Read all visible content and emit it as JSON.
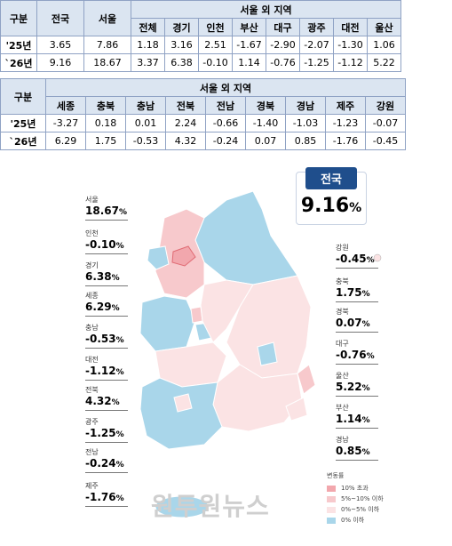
{
  "table1": {
    "row_header": "구분",
    "national_header": "전국",
    "seoul_header": "서울",
    "outside_header": "서울 외 지역",
    "cols": [
      "전체",
      "경기",
      "인천",
      "부산",
      "대구",
      "광주",
      "대전",
      "울산"
    ],
    "rows": [
      {
        "label": "'25년",
        "national": "3.65",
        "seoul": "7.86",
        "values": [
          "1.18",
          "3.16",
          "2.51",
          "-1.67",
          "-2.90",
          "-2.07",
          "-1.30",
          "1.06"
        ]
      },
      {
        "label": "`26년",
        "national": "9.16",
        "seoul": "18.67",
        "values": [
          "3.37",
          "6.38",
          "-0.10",
          "1.14",
          "-0.76",
          "-1.25",
          "-1.12",
          "5.22"
        ]
      }
    ]
  },
  "table2": {
    "row_header": "구분",
    "outside_header": "서울 외 지역",
    "cols": [
      "세종",
      "충북",
      "충남",
      "전북",
      "전남",
      "경북",
      "경남",
      "제주",
      "강원"
    ],
    "rows": [
      {
        "label": "'25년",
        "values": [
          "-3.27",
          "0.18",
          "0.01",
          "2.24",
          "-0.66",
          "-1.40",
          "-1.03",
          "-1.23",
          "-0.07"
        ]
      },
      {
        "label": "`26년",
        "values": [
          "6.29",
          "1.75",
          "-0.53",
          "4.32",
          "-0.24",
          "0.07",
          "0.85",
          "-1.76",
          "-0.45"
        ]
      }
    ]
  },
  "national": {
    "label": "전국",
    "value": "9.16",
    "unit": "%"
  },
  "callouts_left": [
    {
      "name": "서울",
      "value": "18.67"
    },
    {
      "name": "인천",
      "value": "-0.10"
    },
    {
      "name": "경기",
      "value": "6.38"
    },
    {
      "name": "세종",
      "value": "6.29"
    },
    {
      "name": "충남",
      "value": "-0.53"
    },
    {
      "name": "대전",
      "value": "-1.12"
    },
    {
      "name": "전북",
      "value": "4.32"
    },
    {
      "name": "광주",
      "value": "-1.25"
    },
    {
      "name": "전남",
      "value": "-0.24"
    },
    {
      "name": "제주",
      "value": "-1.76"
    }
  ],
  "callouts_right": [
    {
      "name": "강원",
      "value": "-0.45"
    },
    {
      "name": "충북",
      "value": "1.75"
    },
    {
      "name": "경북",
      "value": "0.07"
    },
    {
      "name": "대구",
      "value": "-0.76"
    },
    {
      "name": "울산",
      "value": "5.22"
    },
    {
      "name": "부산",
      "value": "1.14"
    },
    {
      "name": "경남",
      "value": "0.85"
    }
  ],
  "legend": {
    "title": "변동률",
    "items": [
      {
        "label": "10% 초과",
        "color": "#f2a7ad"
      },
      {
        "label": "5%~10% 이하",
        "color": "#f7c9cc"
      },
      {
        "label": "0%~5% 이하",
        "color": "#fbe3e4"
      },
      {
        "label": "0% 이하",
        "color": "#a9d6ea"
      }
    ]
  },
  "colors": {
    "pink_high": "#f2a7ad",
    "pink_mid": "#f7c9cc",
    "pink_low": "#fbe3e4",
    "blue": "#a9d6ea",
    "header_bg": "#dbe5f1",
    "badge": "#1f4e8c"
  },
  "watermark": "원투원뉴스"
}
